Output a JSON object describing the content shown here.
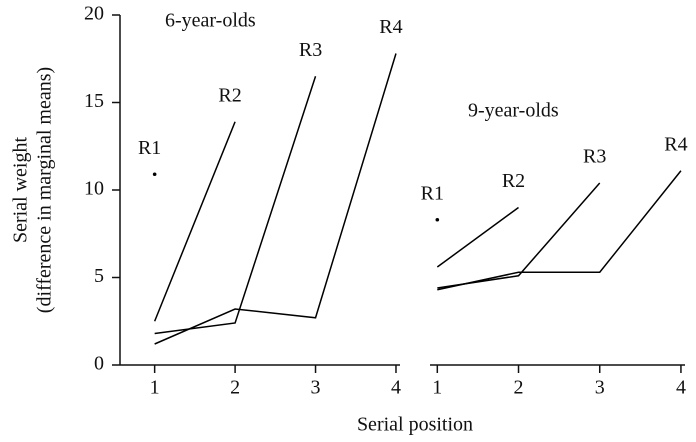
{
  "chart_data": [
    {
      "type": "line",
      "title": "6-year-olds",
      "ylabel": [
        "Serial weight",
        "(difference in marginal means)"
      ],
      "xlabel": "Serial position",
      "x": [
        1,
        2,
        3,
        4
      ],
      "xlim": [
        0.88,
        4.05
      ],
      "xticks": [
        1,
        2,
        3,
        4
      ],
      "ylim": [
        0,
        20
      ],
      "yticks": [
        0,
        5,
        10,
        15,
        20
      ],
      "series": [
        {
          "name": "R1",
          "color": "#000000",
          "values": [
            10.9,
            null,
            null,
            null
          ]
        },
        {
          "name": "R2",
          "color": "#000000",
          "values": [
            2.5,
            13.9,
            null,
            null
          ]
        },
        {
          "name": "R3",
          "color": "#000000",
          "values": [
            1.8,
            2.4,
            16.5,
            null
          ]
        },
        {
          "name": "R4",
          "color": "#000000",
          "values": [
            1.2,
            3.2,
            2.7,
            17.8
          ]
        }
      ]
    },
    {
      "type": "line",
      "title": "9-year-olds",
      "x": [
        1,
        2,
        3,
        4
      ],
      "xlim": [
        0.91,
        4.05
      ],
      "xticks": [
        1,
        2,
        3,
        4
      ],
      "ylim": [
        0,
        20
      ],
      "series": [
        {
          "name": "R1",
          "color": "#000000",
          "values": [
            8.3,
            null,
            null,
            null
          ]
        },
        {
          "name": "R2",
          "color": "#000000",
          "values": [
            5.6,
            9.0,
            null,
            null
          ]
        },
        {
          "name": "R3",
          "color": "#000000",
          "values": [
            4.4,
            5.1,
            10.4,
            null
          ]
        },
        {
          "name": "R4",
          "color": "#000000",
          "values": [
            4.3,
            5.3,
            5.3,
            11.1
          ]
        }
      ]
    }
  ]
}
